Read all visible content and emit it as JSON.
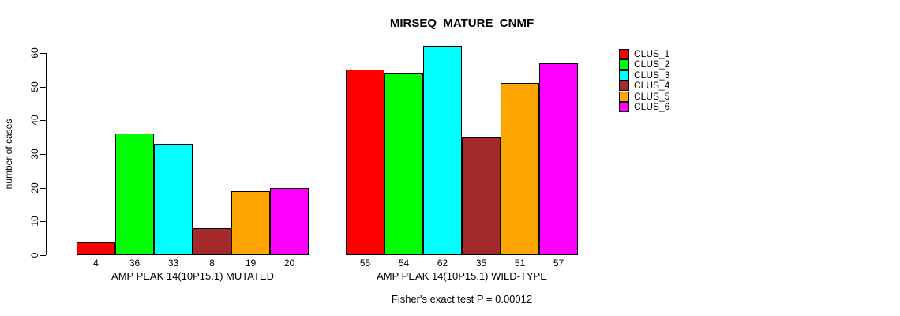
{
  "chart_data": {
    "type": "bar",
    "title": "MIRSEQ_MATURE_CNMF",
    "ylabel": "number of cases",
    "xlabel": "",
    "ylim": [
      0,
      62
    ],
    "yticks": [
      0,
      10,
      20,
      30,
      40,
      50,
      60
    ],
    "grid": false,
    "legend_position": "right",
    "legend": [
      {
        "label": "CLUS_1",
        "color": "#FF0000"
      },
      {
        "label": "CLUS_2",
        "color": "#00FF00"
      },
      {
        "label": "CLUS_3",
        "color": "#00FFFF"
      },
      {
        "label": "CLUS_4",
        "color": "#A52A2A"
      },
      {
        "label": "CLUS_5",
        "color": "#FFA500"
      },
      {
        "label": "CLUS_6",
        "color": "#FF00FF"
      }
    ],
    "groups": [
      {
        "label": "AMP PEAK 14(10P15.1) MUTATED",
        "values": [
          4,
          36,
          33,
          8,
          19,
          20
        ]
      },
      {
        "label": "AMP PEAK 14(10P15.1) WILD-TYPE",
        "values": [
          55,
          54,
          62,
          35,
          51,
          57
        ]
      }
    ],
    "footer": "Fisher's exact test P = 0.00012"
  }
}
